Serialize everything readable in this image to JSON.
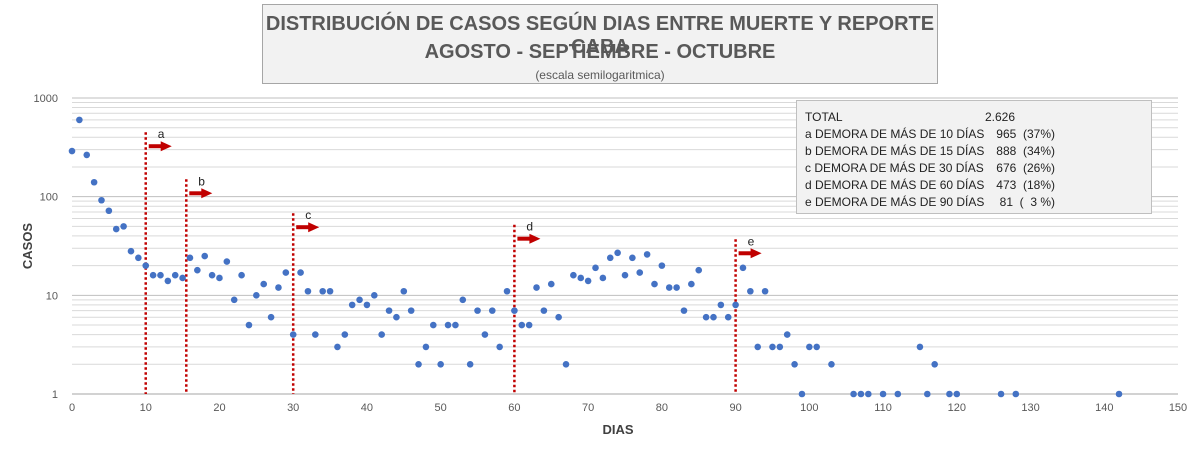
{
  "chart_data": {
    "type": "scatter",
    "title": "DISTRIBUCIÓN DE CASOS SEGÚN DIAS ENTRE MUERTE Y REPORTE CABA",
    "subtitle": "AGOSTO - SEPTIEMBRE - OCTUBRE",
    "note": "(escala semilogaritmica)",
    "xlabel": "DIAS",
    "ylabel": "CASOS",
    "xlim": [
      0,
      150
    ],
    "ylim": [
      1,
      1000
    ],
    "yscale": "log",
    "xticks": [
      "0",
      "10",
      "20",
      "30",
      "40",
      "50",
      "60",
      "70",
      "80",
      "90",
      "100",
      "110",
      "120",
      "130",
      "140",
      "150"
    ],
    "yticks": [
      "1",
      "10",
      "100",
      "1000"
    ],
    "color": "#4472c4",
    "points": [
      [
        0,
        290
      ],
      [
        1,
        600
      ],
      [
        2,
        265
      ],
      [
        3,
        140
      ],
      [
        4,
        92
      ],
      [
        5,
        72
      ],
      [
        6,
        47
      ],
      [
        7,
        50
      ],
      [
        8,
        28
      ],
      [
        9,
        24
      ],
      [
        10,
        20
      ],
      [
        11,
        16
      ],
      [
        12,
        16
      ],
      [
        13,
        14
      ],
      [
        14,
        16
      ],
      [
        15,
        15
      ],
      [
        16,
        24
      ],
      [
        17,
        18
      ],
      [
        18,
        25
      ],
      [
        19,
        16
      ],
      [
        20,
        15
      ],
      [
        21,
        22
      ],
      [
        22,
        9
      ],
      [
        23,
        16
      ],
      [
        24,
        5
      ],
      [
        25,
        10
      ],
      [
        26,
        13
      ],
      [
        27,
        6
      ],
      [
        28,
        12
      ],
      [
        29,
        17
      ],
      [
        30,
        4
      ],
      [
        31,
        17
      ],
      [
        32,
        11
      ],
      [
        33,
        4
      ],
      [
        34,
        11
      ],
      [
        35,
        11
      ],
      [
        36,
        3
      ],
      [
        37,
        4
      ],
      [
        38,
        8
      ],
      [
        39,
        9
      ],
      [
        40,
        8
      ],
      [
        41,
        10
      ],
      [
        42,
        4
      ],
      [
        43,
        7
      ],
      [
        44,
        6
      ],
      [
        45,
        11
      ],
      [
        46,
        7
      ],
      [
        47,
        2
      ],
      [
        48,
        3
      ],
      [
        49,
        5
      ],
      [
        50,
        2
      ],
      [
        51,
        5
      ],
      [
        52,
        5
      ],
      [
        53,
        9
      ],
      [
        54,
        2
      ],
      [
        55,
        7
      ],
      [
        56,
        4
      ],
      [
        57,
        7
      ],
      [
        58,
        3
      ],
      [
        59,
        11
      ],
      [
        60,
        7
      ],
      [
        61,
        5
      ],
      [
        62,
        5
      ],
      [
        63,
        12
      ],
      [
        64,
        7
      ],
      [
        65,
        13
      ],
      [
        66,
        6
      ],
      [
        67,
        2
      ],
      [
        68,
        16
      ],
      [
        69,
        15
      ],
      [
        70,
        14
      ],
      [
        71,
        19
      ],
      [
        72,
        15
      ],
      [
        73,
        24
      ],
      [
        74,
        27
      ],
      [
        75,
        16
      ],
      [
        76,
        24
      ],
      [
        77,
        17
      ],
      [
        78,
        26
      ],
      [
        79,
        13
      ],
      [
        80,
        20
      ],
      [
        81,
        12
      ],
      [
        82,
        12
      ],
      [
        83,
        7
      ],
      [
        84,
        13
      ],
      [
        85,
        18
      ],
      [
        86,
        6
      ],
      [
        87,
        6
      ],
      [
        88,
        8
      ],
      [
        89,
        6
      ],
      [
        90,
        8
      ],
      [
        91,
        19
      ],
      [
        92,
        11
      ],
      [
        93,
        3
      ],
      [
        94,
        11
      ],
      [
        95,
        3
      ],
      [
        96,
        3
      ],
      [
        97,
        4
      ],
      [
        98,
        2
      ],
      [
        99,
        1
      ],
      [
        100,
        3
      ],
      [
        101,
        3
      ],
      [
        103,
        2
      ],
      [
        106,
        1
      ],
      [
        107,
        1
      ],
      [
        108,
        1
      ],
      [
        110,
        1
      ],
      [
        112,
        1
      ],
      [
        115,
        3
      ],
      [
        116,
        1
      ],
      [
        117,
        2
      ],
      [
        119,
        1
      ],
      [
        120,
        1
      ],
      [
        126,
        1
      ],
      [
        128,
        1
      ],
      [
        142,
        1
      ]
    ],
    "markers": [
      {
        "label": "a",
        "x": 10,
        "top_value": 450
      },
      {
        "label": "b",
        "x": 15.5,
        "top_value": 150
      },
      {
        "label": "c",
        "x": 30,
        "top_value": 68
      },
      {
        "label": "d",
        "x": 60,
        "top_value": 52
      },
      {
        "label": "e",
        "x": 90,
        "top_value": 37
      }
    ],
    "marker_color": "#c00000",
    "legend": {
      "rows": [
        {
          "label": "TOTAL",
          "value": "2.626"
        },
        {
          "label": "a DEMORA DE MÁS DE 10 DÍAS",
          "value": "965  (37%)"
        },
        {
          "label": "b DEMORA DE MÁS DE 15 DÍAS",
          "value": "888  (34%)"
        },
        {
          "label": "c DEMORA DE MÁS DE 30 DÍAS",
          "value": "676  (26%)"
        },
        {
          "label": "d DEMORA DE MÁS DE 60 DÍAS",
          "value": "473  (18%)"
        },
        {
          "label": "e DEMORA DE MÁS DE 90 DÍAS",
          "value": "81  (  3 %)"
        }
      ]
    },
    "grid": true
  }
}
